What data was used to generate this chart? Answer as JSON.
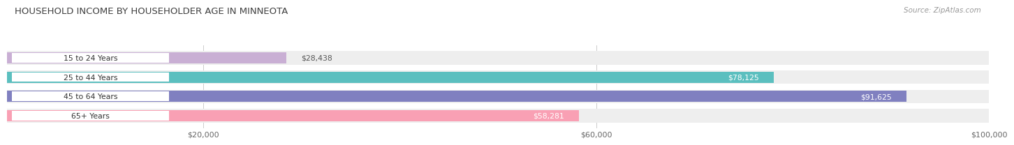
{
  "title": "HOUSEHOLD INCOME BY HOUSEHOLDER AGE IN MINNEOTA",
  "source": "Source: ZipAtlas.com",
  "categories": [
    "15 to 24 Years",
    "25 to 44 Years",
    "45 to 64 Years",
    "65+ Years"
  ],
  "values": [
    28438,
    78125,
    91625,
    58281
  ],
  "value_labels": [
    "$28,438",
    "$78,125",
    "$91,625",
    "$58,281"
  ],
  "bar_colors": [
    "#c9afd4",
    "#5bbfbf",
    "#8080c0",
    "#f9a0b4"
  ],
  "bg_bar_color": "#eeeeee",
  "max_value": 100000,
  "x_ticks": [
    20000,
    60000,
    100000
  ],
  "x_tick_labels": [
    "$20,000",
    "$60,000",
    "$100,000"
  ],
  "title_color": "#404040",
  "source_color": "#999999",
  "bar_height": 0.58,
  "bg_bar_height": 0.7,
  "label_pill_color": "#ffffff",
  "value_label_dark": "#555555",
  "value_label_white": "#ffffff"
}
